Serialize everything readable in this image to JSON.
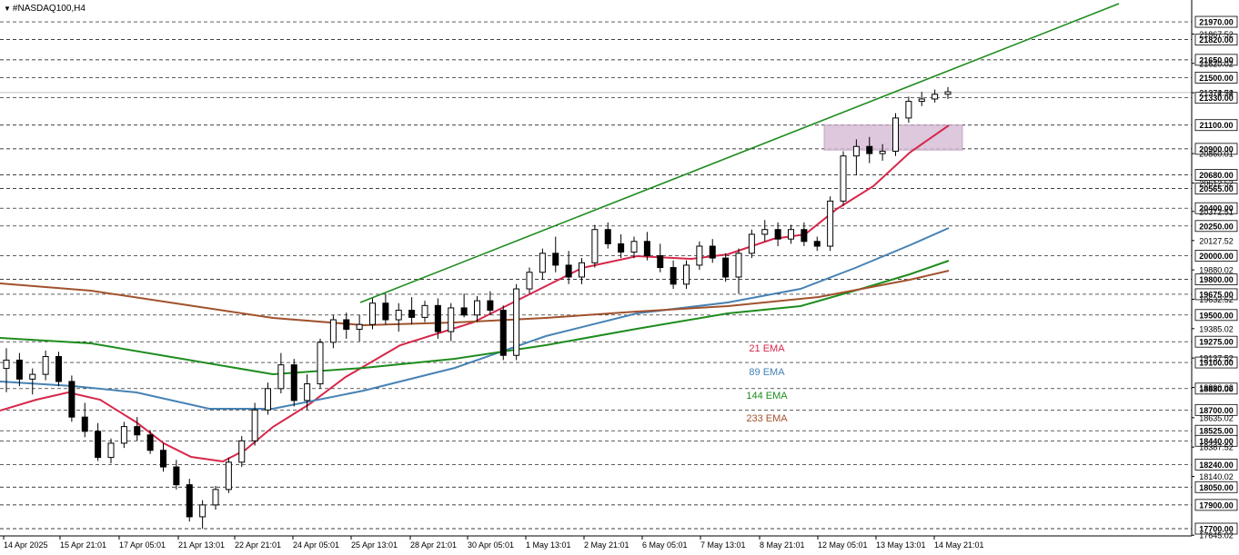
{
  "title": "#NASDAQ100,H4",
  "chart_data": {
    "type": "candlestick",
    "symbol": "#NASDAQ100",
    "timeframe": "H4",
    "ylim": [
      17645.02,
      22050
    ],
    "x_tick_labels": [
      "14 Apr 2025",
      "15 Apr 21:01",
      "17 Apr 05:01",
      "21 Apr 13:01",
      "22 Apr 21:01",
      "24 Apr 05:01",
      "25 Apr 13:01",
      "28 Apr 21:01",
      "30 Apr 05:01",
      "1 May 13:01",
      "2 May 21:01",
      "6 May 05:01",
      "7 May 13:01",
      "8 May 21:01",
      "12 May 05:01",
      "13 May 13:01",
      "14 May 21:01"
    ],
    "highlight_price_labels": [
      "21970.00",
      "21820.00",
      "21650.00",
      "21500.00",
      "21330.00",
      "21100.00",
      "20900.00",
      "20680.00",
      "20565.00",
      "20400.00",
      "20250.00",
      "20000.00",
      "19800.00",
      "19675.00",
      "19500.00",
      "19275.00",
      "19100.00",
      "18880.00",
      "18700.00",
      "18525.00",
      "18440.00",
      "18240.00",
      "18050.00",
      "17900.00",
      "17700.00"
    ],
    "price_labels": [
      "21867.52",
      "21620.02",
      "21372.52",
      "20860.01",
      "20612.52",
      "20372.51",
      "20127.52",
      "19880.02",
      "19632.52",
      "19385.02",
      "19137.52",
      "18890.02",
      "18635.02",
      "18387.52",
      "18140.02",
      "17645.02"
    ],
    "current_price": "21374.74",
    "candles": [
      [
        19050,
        19220,
        18850,
        19120
      ],
      [
        19120,
        19180,
        18900,
        18960
      ],
      [
        18960,
        19050,
        18830,
        19000
      ],
      [
        19000,
        19200,
        18950,
        19150
      ],
      [
        19150,
        19190,
        18900,
        18940
      ],
      [
        18940,
        18990,
        18600,
        18640
      ],
      [
        18640,
        18760,
        18470,
        18520
      ],
      [
        18520,
        18590,
        18270,
        18300
      ],
      [
        18300,
        18460,
        18250,
        18420
      ],
      [
        18420,
        18600,
        18380,
        18560
      ],
      [
        18560,
        18640,
        18440,
        18490
      ],
      [
        18490,
        18530,
        18330,
        18360
      ],
      [
        18360,
        18420,
        18180,
        18220
      ],
      [
        18220,
        18280,
        18030,
        18070
      ],
      [
        18070,
        18120,
        17760,
        17800
      ],
      [
        17800,
        17940,
        17700,
        17900
      ],
      [
        17900,
        18060,
        17860,
        18030
      ],
      [
        18030,
        18300,
        18000,
        18260
      ],
      [
        18260,
        18480,
        18220,
        18440
      ],
      [
        18440,
        18760,
        18400,
        18700
      ],
      [
        18700,
        18930,
        18660,
        18880
      ],
      [
        18880,
        19180,
        18840,
        19080
      ],
      [
        19080,
        19130,
        18730,
        18780
      ],
      [
        18780,
        19000,
        18700,
        18920
      ],
      [
        18920,
        19300,
        18880,
        19270
      ],
      [
        19270,
        19500,
        19220,
        19460
      ],
      [
        19460,
        19520,
        19300,
        19380
      ],
      [
        19380,
        19500,
        19280,
        19420
      ],
      [
        19420,
        19640,
        19380,
        19600
      ],
      [
        19600,
        19680,
        19420,
        19460
      ],
      [
        19460,
        19600,
        19360,
        19540
      ],
      [
        19540,
        19650,
        19420,
        19480
      ],
      [
        19480,
        19620,
        19440,
        19580
      ],
      [
        19580,
        19640,
        19300,
        19360
      ],
      [
        19360,
        19600,
        19280,
        19560
      ],
      [
        19560,
        19680,
        19480,
        19500
      ],
      [
        19500,
        19660,
        19440,
        19620
      ],
      [
        19620,
        19700,
        19500,
        19540
      ],
      [
        19540,
        19580,
        19120,
        19160
      ],
      [
        19160,
        19760,
        19120,
        19720
      ],
      [
        19720,
        19900,
        19680,
        19860
      ],
      [
        19860,
        20060,
        19800,
        20020
      ],
      [
        20020,
        20160,
        19860,
        19920
      ],
      [
        19920,
        20040,
        19760,
        19820
      ],
      [
        19820,
        19980,
        19760,
        19940
      ],
      [
        19940,
        20260,
        19900,
        20220
      ],
      [
        20220,
        20280,
        20060,
        20100
      ],
      [
        20100,
        20180,
        19980,
        20030
      ],
      [
        20030,
        20160,
        19980,
        20120
      ],
      [
        20120,
        20200,
        19960,
        20000
      ],
      [
        20000,
        20100,
        19860,
        19900
      ],
      [
        19900,
        19960,
        19720,
        19760
      ],
      [
        19760,
        19960,
        19720,
        19920
      ],
      [
        19920,
        20120,
        19880,
        20080
      ],
      [
        20080,
        20140,
        19940,
        19980
      ],
      [
        19980,
        20020,
        19780,
        19820
      ],
      [
        19820,
        20060,
        19680,
        20020
      ],
      [
        20020,
        20220,
        19980,
        20180
      ],
      [
        20180,
        20300,
        20120,
        20220
      ],
      [
        20220,
        20280,
        20080,
        20140
      ],
      [
        20140,
        20260,
        20100,
        20220
      ],
      [
        20220,
        20280,
        20080,
        20120
      ],
      [
        20120,
        20160,
        20040,
        20080
      ],
      [
        20080,
        20500,
        20040,
        20460
      ],
      [
        20460,
        20880,
        20420,
        20840
      ],
      [
        20840,
        20980,
        20680,
        20920
      ],
      [
        20920,
        21000,
        20780,
        20860
      ],
      [
        20860,
        20940,
        20800,
        20880
      ],
      [
        20880,
        21200,
        20840,
        21160
      ],
      [
        21160,
        21340,
        21120,
        21300
      ],
      [
        21300,
        21380,
        21260,
        21320
      ],
      [
        21320,
        21400,
        21290,
        21360
      ],
      [
        21360,
        21420,
        21320,
        21380
      ]
    ],
    "indicators": [
      {
        "name": "21 EMA",
        "color": "#d6274a"
      },
      {
        "name": "89 EMA",
        "color": "#4682b4"
      },
      {
        "name": "144 EMA",
        "color": "#1e8c1e"
      },
      {
        "name": "233 EMA",
        "color": "#a0522d"
      }
    ],
    "grid": true,
    "highlight_zone": {
      "color": "#d8bfd8",
      "price_low": 20890,
      "price_high": 21100
    }
  }
}
